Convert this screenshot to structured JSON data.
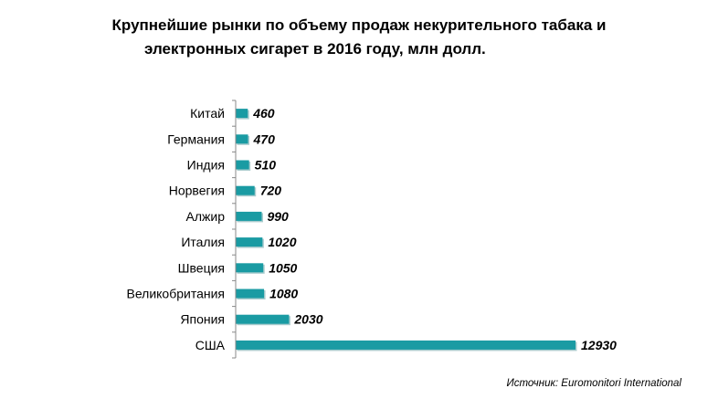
{
  "title_lines": [
    "Крупнейшие рынки по объему продаж некурительного табака и",
    "электронных сигарет в 2016 году, млн долл."
  ],
  "source": "Источник: Euromonitori International",
  "colors": {
    "bar": "#1a9ba3",
    "bar_shadow": "#0e6e74",
    "axis": "#888888",
    "text": "#000000"
  },
  "chart_data": {
    "type": "bar",
    "orientation": "horizontal",
    "title": "Крупнейшие рынки по объему продаж некурительного табака и электронных сигарет в 2016 году, млн долл.",
    "categories": [
      "Китай",
      "Германия",
      "Индия",
      "Норвегия",
      "Алжир",
      "Италия",
      "Швеция",
      "Великобритания",
      "Япония",
      "США"
    ],
    "values": [
      460,
      470,
      510,
      720,
      990,
      1020,
      1050,
      1080,
      2030,
      12930
    ],
    "data_labels": [
      "460",
      "470",
      "510",
      "720",
      "990",
      "1020",
      "1050",
      "1080",
      "2030",
      "12930"
    ],
    "xlabel": "",
    "ylabel": "",
    "xlim": [
      0,
      12930
    ],
    "grid": false,
    "legend": "none"
  }
}
